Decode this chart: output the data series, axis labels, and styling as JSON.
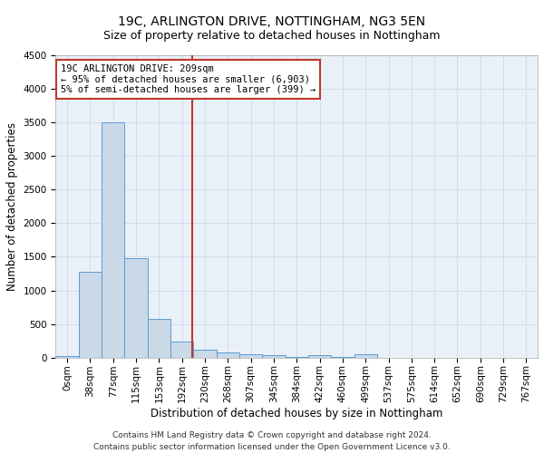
{
  "title1": "19C, ARLINGTON DRIVE, NOTTINGHAM, NG3 5EN",
  "title2": "Size of property relative to detached houses in Nottingham",
  "xlabel": "Distribution of detached houses by size in Nottingham",
  "ylabel": "Number of detached properties",
  "bar_labels": [
    "0sqm",
    "38sqm",
    "77sqm",
    "115sqm",
    "153sqm",
    "192sqm",
    "230sqm",
    "268sqm",
    "307sqm",
    "345sqm",
    "384sqm",
    "422sqm",
    "460sqm",
    "499sqm",
    "537sqm",
    "575sqm",
    "614sqm",
    "652sqm",
    "690sqm",
    "729sqm",
    "767sqm"
  ],
  "bar_values": [
    30,
    1280,
    3500,
    1480,
    580,
    240,
    120,
    80,
    55,
    40,
    5,
    40,
    5,
    50,
    0,
    0,
    0,
    0,
    0,
    0,
    0
  ],
  "bar_color": "#c9d9e8",
  "bar_edgecolor": "#5b9bd5",
  "vline_color": "#c0392b",
  "annotation_text": "19C ARLINGTON DRIVE: 209sqm\n← 95% of detached houses are smaller (6,903)\n5% of semi-detached houses are larger (399) →",
  "annotation_box_color": "#c0392b",
  "ylim": [
    0,
    4500
  ],
  "yticks": [
    0,
    500,
    1000,
    1500,
    2000,
    2500,
    3000,
    3500,
    4000,
    4500
  ],
  "grid_color": "#d0d8e8",
  "bg_color": "#eaf0f8",
  "footer": "Contains HM Land Registry data © Crown copyright and database right 2024.\nContains public sector information licensed under the Open Government Licence v3.0.",
  "title1_fontsize": 10,
  "title2_fontsize": 9,
  "xlabel_fontsize": 8.5,
  "ylabel_fontsize": 8.5,
  "tick_fontsize": 7.5,
  "footer_fontsize": 6.5,
  "annot_fontsize": 7.5
}
